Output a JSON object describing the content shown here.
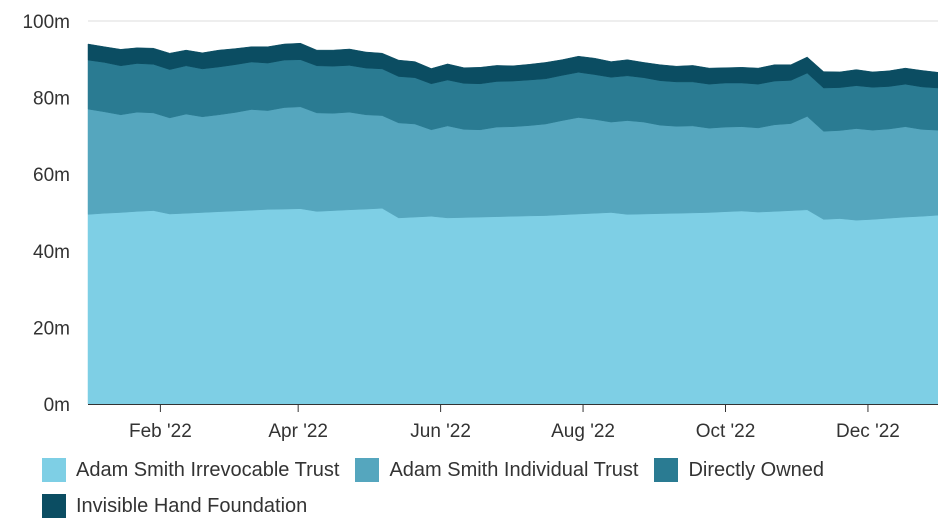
{
  "chart_data": {
    "type": "area",
    "stacked": true,
    "title": "",
    "xlabel": "",
    "ylabel": "",
    "ylim": [
      0,
      100000000
    ],
    "y_ticks": [
      {
        "value": 0,
        "label": "0m"
      },
      {
        "value": 20000000,
        "label": "20m"
      },
      {
        "value": 40000000,
        "label": "40m"
      },
      {
        "value": 60000000,
        "label": "60m"
      },
      {
        "value": 80000000,
        "label": "80m"
      },
      {
        "value": 100000000,
        "label": "100m"
      }
    ],
    "xlim": [
      "2022-01-01",
      "2022-12-31"
    ],
    "x_ticks": [
      {
        "date": "2022-02-01",
        "label": "Feb '22"
      },
      {
        "date": "2022-04-01",
        "label": "Apr '22"
      },
      {
        "date": "2022-06-01",
        "label": "Jun '22"
      },
      {
        "date": "2022-08-01",
        "label": "Aug '22"
      },
      {
        "date": "2022-10-01",
        "label": "Oct '22"
      },
      {
        "date": "2022-12-01",
        "label": "Dec '22"
      }
    ],
    "grid": {
      "horizontal": true,
      "vertical": false
    },
    "legend_position": "bottom",
    "x": [
      "2022-01-01",
      "2022-01-08",
      "2022-01-15",
      "2022-01-22",
      "2022-01-29",
      "2022-02-05",
      "2022-02-12",
      "2022-02-19",
      "2022-02-26",
      "2022-03-05",
      "2022-03-12",
      "2022-03-19",
      "2022-03-26",
      "2022-04-02",
      "2022-04-09",
      "2022-04-16",
      "2022-04-23",
      "2022-04-30",
      "2022-05-07",
      "2022-05-14",
      "2022-05-21",
      "2022-05-28",
      "2022-06-04",
      "2022-06-11",
      "2022-06-18",
      "2022-06-25",
      "2022-07-02",
      "2022-07-09",
      "2022-07-16",
      "2022-07-23",
      "2022-07-30",
      "2022-08-06",
      "2022-08-13",
      "2022-08-20",
      "2022-08-27",
      "2022-09-03",
      "2022-09-10",
      "2022-09-17",
      "2022-09-24",
      "2022-10-01",
      "2022-10-08",
      "2022-10-15",
      "2022-10-22",
      "2022-10-29",
      "2022-11-05",
      "2022-11-12",
      "2022-11-19",
      "2022-11-26",
      "2022-12-03",
      "2022-12-10",
      "2022-12-17",
      "2022-12-24",
      "2022-12-31"
    ],
    "series": [
      {
        "name": "Adam Smith Irrevocable Trust",
        "color": "#7ecfe5",
        "values": [
          49.5,
          49.8,
          50.0,
          50.3,
          50.5,
          49.6,
          49.8,
          50.0,
          50.2,
          50.4,
          50.6,
          50.8,
          50.9,
          51.0,
          50.3,
          50.5,
          50.7,
          50.9,
          51.1,
          48.6,
          48.8,
          49.0,
          48.6,
          48.7,
          48.8,
          48.9,
          49.0,
          49.1,
          49.2,
          49.4,
          49.6,
          49.8,
          50.0,
          49.5,
          49.6,
          49.7,
          49.8,
          49.9,
          50.0,
          50.2,
          50.4,
          50.1,
          50.3,
          50.5,
          50.7,
          48.2,
          48.4,
          48.0,
          48.2,
          48.5,
          48.8,
          49.0,
          49.3
        ]
      },
      {
        "name": "Adam Smith Individual Trust",
        "color": "#55a6be",
        "values": [
          27.5,
          26.5,
          25.5,
          25.9,
          25.5,
          25.1,
          25.9,
          25.0,
          25.3,
          25.7,
          26.3,
          25.8,
          26.5,
          26.6,
          25.7,
          25.4,
          25.5,
          24.6,
          24.2,
          24.8,
          24.3,
          22.6,
          24.0,
          23.0,
          22.8,
          23.4,
          23.4,
          23.6,
          23.9,
          24.6,
          25.2,
          24.5,
          23.6,
          24.5,
          24.0,
          23.1,
          22.7,
          22.7,
          22.0,
          22.1,
          22.0,
          22.0,
          22.6,
          22.7,
          24.4,
          23.0,
          23.0,
          23.9,
          23.3,
          23.3,
          23.6,
          22.7,
          22.2
        ]
      },
      {
        "name": "Directly Owned",
        "color": "#2a7b92",
        "values": [
          12.8,
          12.9,
          12.8,
          12.7,
          12.7,
          12.6,
          12.6,
          12.5,
          12.5,
          12.5,
          12.4,
          12.4,
          12.4,
          12.3,
          12.3,
          12.3,
          12.2,
          12.2,
          12.2,
          12.1,
          12.1,
          12.0,
          12.0,
          12.0,
          12.0,
          11.9,
          11.9,
          11.9,
          11.8,
          11.8,
          11.8,
          11.7,
          11.7,
          11.7,
          11.6,
          11.6,
          11.6,
          11.5,
          11.5,
          11.5,
          11.4,
          11.4,
          11.4,
          11.3,
          11.3,
          11.3,
          11.2,
          11.2,
          11.2,
          11.1,
          11.1,
          11.1,
          11.0
        ]
      },
      {
        "name": "Invisible Hand Foundation",
        "color": "#0b4d62",
        "values": [
          4.2,
          4.1,
          4.3,
          4.1,
          4.2,
          4.3,
          4.1,
          4.2,
          4.4,
          4.2,
          4.0,
          4.3,
          4.2,
          4.3,
          4.1,
          4.2,
          4.3,
          4.2,
          4.1,
          4.3,
          4.2,
          4.0,
          4.2,
          4.1,
          4.3,
          4.2,
          4.0,
          4.1,
          4.3,
          4.1,
          4.2,
          4.3,
          4.1,
          4.2,
          4.0,
          4.2,
          4.1,
          4.3,
          4.2,
          4.0,
          4.1,
          4.2,
          4.3,
          4.1,
          4.2,
          4.3,
          4.1,
          4.2,
          4.0,
          4.1,
          4.2,
          4.3,
          4.1
        ]
      }
    ],
    "value_scale": 1000000
  }
}
